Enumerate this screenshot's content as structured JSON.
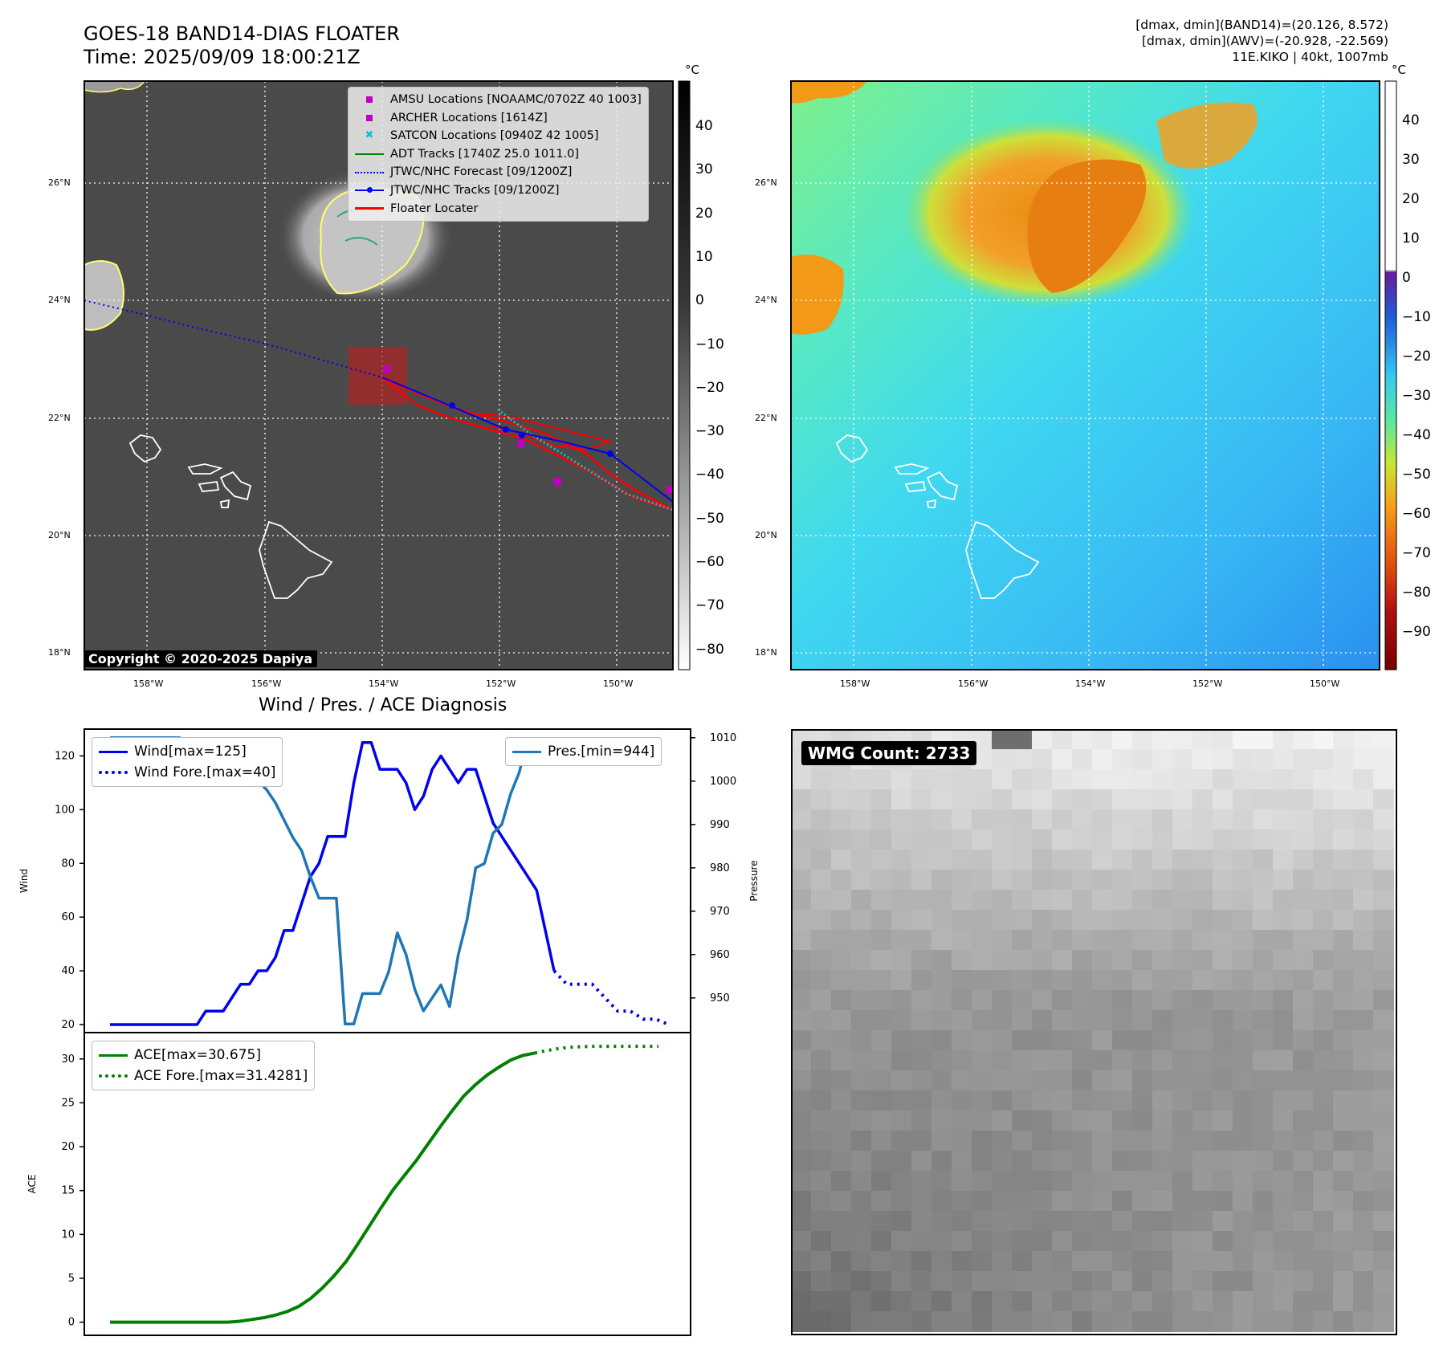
{
  "header": {
    "title_line1": "GOES-18 BAND14-DIAS FLOATER",
    "title_line2": "Time: 2025/09/09 18:00:21Z",
    "info_line1": "[dmax, dmin](BAND14)=(20.126, 8.572)",
    "info_line2": "[dmax, dmin](AWV)=(-20.928, -22.569)",
    "info_line3": "11E.KIKO | 40kt, 1007mb"
  },
  "map": {
    "lat_labels": [
      "26°N",
      "24°N",
      "22°N",
      "20°N",
      "18°N"
    ],
    "lon_labels": [
      "158°W",
      "156°W",
      "154°W",
      "152°W",
      "150°W"
    ],
    "copyright": "Copyright © 2020-2025 Dapiya",
    "legend": [
      {
        "label": "AMSU Locations [NOAAMC/0702Z 40 1003]",
        "icon": "square-marker",
        "color": "#c000c0"
      },
      {
        "label": "ARCHER Locations [1614Z]",
        "icon": "square-marker",
        "color": "#c000c0"
      },
      {
        "label": "SATCON Locations [0940Z 42 1005]",
        "icon": "x-marker",
        "color": "#17becf"
      },
      {
        "label": "ADT Tracks [1740Z 25.0 1011.0]",
        "icon": "solid-line",
        "color": "#008000"
      },
      {
        "label": "JTWC/NHC Forecast [09/1200Z]",
        "icon": "dotted-line",
        "color": "#0000ff"
      },
      {
        "label": "JTWC/NHC Tracks [09/1200Z]",
        "icon": "line-dot",
        "color": "#0000ff"
      },
      {
        "label": "Floater Locater",
        "icon": "solid-line",
        "color": "#ff0000"
      }
    ]
  },
  "colorbar_ir": {
    "unit": "°C",
    "ticks": [
      "40",
      "30",
      "20",
      "10",
      "0",
      "−10",
      "−20",
      "−30",
      "−40",
      "−50",
      "−60",
      "−70",
      "−80"
    ]
  },
  "colorbar_wv": {
    "unit": "°C",
    "ticks": [
      "40",
      "30",
      "20",
      "10",
      "0",
      "−10",
      "−20",
      "−30",
      "−40",
      "−50",
      "−60",
      "−70",
      "−80",
      "−90"
    ]
  },
  "diagnosis": {
    "title": "Wind / Pres. / ACE Diagnosis"
  },
  "wmg": {
    "label": "WMG Count: 2733"
  },
  "chart_data": [
    {
      "type": "line",
      "title": "Wind / Pres. / ACE Diagnosis",
      "ylabel": "Wind",
      "y2label": "Pressure",
      "ylim": [
        17,
        130
      ],
      "y2lim": [
        942,
        1012
      ],
      "yticks": [
        "20",
        "40",
        "60",
        "80",
        "100",
        "120"
      ],
      "y2ticks": [
        "950",
        "960",
        "970",
        "980",
        "990",
        "1000",
        "1010"
      ],
      "series": [
        {
          "name": "Wind[max=125]",
          "color": "#0000ee",
          "style": "solid",
          "axis": "left",
          "values": [
            20,
            20,
            20,
            20,
            20,
            20,
            20,
            20,
            20,
            20,
            20,
            25,
            25,
            25,
            30,
            35,
            35,
            40,
            40,
            45,
            55,
            55,
            65,
            75,
            80,
            90,
            90,
            90,
            110,
            125,
            125,
            115,
            115,
            115,
            110,
            100,
            105,
            115,
            120,
            115,
            110,
            115,
            115,
            105,
            95,
            90,
            85,
            80,
            75,
            70,
            55,
            40
          ]
        },
        {
          "name": "Wind Fore.[max=40]",
          "color": "#0000ee",
          "style": "dotted",
          "axis": "left",
          "values": [
            40,
            35,
            35,
            35,
            30,
            25,
            25,
            22,
            22,
            20
          ]
        },
        {
          "name": "Pres.[min=944]",
          "color": "#1f77b4",
          "style": "solid",
          "axis": "right",
          "values": [
            1010,
            1010,
            1010,
            1010,
            1010,
            1010,
            1010,
            1010,
            1010,
            1009,
            1009,
            1008,
            1008,
            1007,
            1005,
            1003,
            1001,
            1000,
            998,
            995,
            991,
            987,
            984,
            978,
            973,
            973,
            973,
            944,
            944,
            951,
            951,
            951,
            956,
            965,
            960,
            952,
            947,
            950,
            953,
            948,
            960,
            968,
            980,
            981,
            988,
            990,
            997,
            1002,
            1010
          ]
        },
        {
          "name": "ACE[max=30.675]",
          "color": "#008000",
          "style": "solid",
          "axis": "ace",
          "values": [
            0,
            0,
            0,
            0,
            0,
            0,
            0,
            0,
            0,
            0,
            0,
            0.1,
            0.3,
            0.5,
            0.8,
            1.2,
            1.8,
            2.7,
            3.9,
            5.3,
            6.9,
            8.9,
            11,
            13.1,
            15.1,
            16.8,
            18.5,
            20.4,
            22.3,
            24.1,
            25.8,
            27.1,
            28.2,
            29.1,
            29.9,
            30.4,
            30.675
          ]
        },
        {
          "name": "ACE Fore.[max=31.4281]",
          "color": "#008000",
          "style": "dotted",
          "axis": "ace",
          "values": [
            30.675,
            30.9,
            31.1,
            31.25,
            31.35,
            31.4,
            31.4281,
            31.4281,
            31.4281,
            31.4281,
            31.4281,
            31.4281,
            31.4281,
            31.4281
          ]
        }
      ],
      "ace_panel": {
        "ylabel": "ACE",
        "ylim": [
          -1.5,
          33
        ],
        "yticks": [
          "0",
          "5",
          "10",
          "15",
          "20",
          "25",
          "30"
        ]
      }
    }
  ]
}
